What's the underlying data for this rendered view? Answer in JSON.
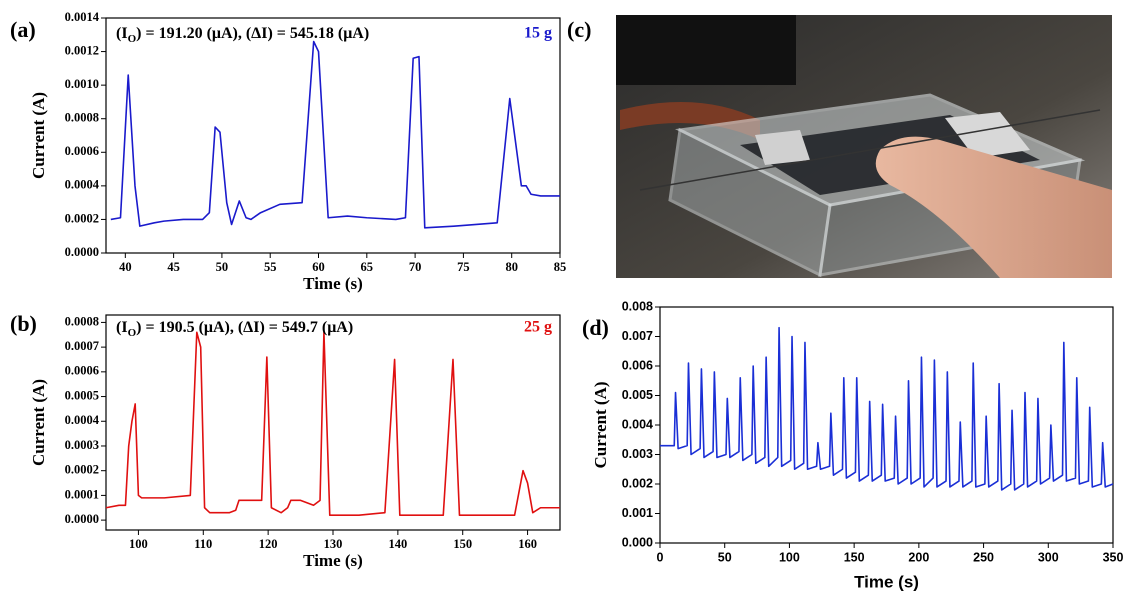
{
  "photo_panel": {
    "panel_label": "(c)"
  },
  "chart_data": [
    {
      "type": "line",
      "panel_label": "(a)",
      "color": "#1a1acc",
      "annotation_parts": [
        "(I",
        "O",
        ") = 191.20 (μA), (ΔI) = 545.18 (μA)"
      ],
      "load_label": "15 g",
      "load_color": "#1a1acc",
      "x_label": "Time (s)",
      "y_label": "Current (A)",
      "xlim": [
        38,
        85
      ],
      "xticks": [
        40,
        45,
        50,
        55,
        60,
        65,
        70,
        75,
        80,
        85
      ],
      "ylim": [
        0,
        0.0014
      ],
      "yticks": [
        {
          "value": 0,
          "label": "0.0000"
        },
        {
          "value": 0.0002,
          "label": "0.0002"
        },
        {
          "value": 0.0004,
          "label": "0.0004"
        },
        {
          "value": 0.0006,
          "label": "0.0006"
        },
        {
          "value": 0.0008,
          "label": "0.0008"
        },
        {
          "value": 0.001,
          "label": "0.0010"
        },
        {
          "value": 0.0012,
          "label": "0.0012"
        },
        {
          "value": 0.0014,
          "label": "0.0014"
        }
      ],
      "x": [
        38.5,
        39.5,
        40.3,
        41,
        41.5,
        43,
        44,
        46,
        48,
        48.7,
        49.3,
        49.8,
        50.5,
        51,
        51.8,
        52.5,
        53,
        54,
        56,
        58.3,
        59.5,
        60,
        61,
        63,
        65,
        68,
        69,
        69.8,
        70.4,
        71,
        74,
        78.5,
        79.8,
        81,
        81.5,
        82,
        83,
        85
      ],
      "values": [
        0.0002,
        0.00021,
        0.00106,
        0.0004,
        0.00016,
        0.00018,
        0.00019,
        0.0002,
        0.0002,
        0.00024,
        0.00075,
        0.00072,
        0.0003,
        0.00017,
        0.00031,
        0.00021,
        0.0002,
        0.00024,
        0.00029,
        0.0003,
        0.00126,
        0.0012,
        0.00021,
        0.00022,
        0.00021,
        0.0002,
        0.00021,
        0.00116,
        0.00117,
        0.00015,
        0.00016,
        0.00018,
        0.00092,
        0.0004,
        0.0004,
        0.00035,
        0.00034,
        0.00034
      ]
    },
    {
      "type": "line",
      "panel_label": "(b)",
      "color": "#e01010",
      "annotation_parts": [
        "(I",
        "O",
        ") = 190.5 (μA), (ΔI) = 549.7 (μA)"
      ],
      "load_label": "25 g",
      "load_color": "#e01010",
      "x_label": "Time (s)",
      "y_label": "Current (A)",
      "xlim": [
        95,
        165
      ],
      "xticks": [
        100,
        110,
        120,
        130,
        140,
        150,
        160
      ],
      "ylim": [
        -4e-05,
        0.00083
      ],
      "yticks": [
        {
          "value": 0,
          "label": "0.0000"
        },
        {
          "value": 0.0001,
          "label": "0.0001"
        },
        {
          "value": 0.0002,
          "label": "0.0002"
        },
        {
          "value": 0.0003,
          "label": "0.0003"
        },
        {
          "value": 0.0004,
          "label": "0.0004"
        },
        {
          "value": 0.0005,
          "label": "0.0005"
        },
        {
          "value": 0.0006,
          "label": "0.0006"
        },
        {
          "value": 0.0007,
          "label": "0.0007"
        },
        {
          "value": 0.0008,
          "label": "0.0008"
        }
      ],
      "x": [
        95,
        97,
        98,
        98.5,
        99,
        99.5,
        100,
        100.5,
        104,
        108,
        109,
        109.6,
        110.2,
        111,
        114,
        115,
        115.5,
        118,
        119,
        119.8,
        120.5,
        122,
        123,
        123.5,
        125,
        127,
        128,
        128.6,
        129.5,
        134,
        138,
        139.5,
        140.3,
        147,
        148.5,
        149.5,
        155,
        158,
        159.3,
        160,
        160.8,
        162,
        165
      ],
      "values": [
        5e-05,
        6e-05,
        6e-05,
        0.0003,
        0.0004,
        0.00047,
        0.0001,
        9e-05,
        9e-05,
        0.0001,
        0.00076,
        0.0007,
        5e-05,
        3e-05,
        3e-05,
        4e-05,
        8e-05,
        8e-05,
        8e-05,
        0.00066,
        5e-05,
        3e-05,
        5e-05,
        8e-05,
        8e-05,
        6e-05,
        8e-05,
        0.00076,
        2e-05,
        2e-05,
        3e-05,
        0.00065,
        2e-05,
        2e-05,
        0.00065,
        2e-05,
        2e-05,
        2e-05,
        0.0002,
        0.00015,
        3e-05,
        5e-05,
        5e-05
      ]
    },
    {
      "type": "line",
      "panel_label": "(d)",
      "color": "#1a2fd6",
      "x_label": "Time (s)",
      "y_label": "Current (A)",
      "xlim": [
        0,
        350
      ],
      "xticks": [
        0,
        50,
        100,
        150,
        200,
        250,
        300,
        350
      ],
      "ylim": [
        0,
        0.008
      ],
      "yticks": [
        {
          "value": 0,
          "label": "0.000"
        },
        {
          "value": 0.001,
          "label": "0.001"
        },
        {
          "value": 0.002,
          "label": "0.002"
        },
        {
          "value": 0.003,
          "label": "0.003"
        },
        {
          "value": 0.004,
          "label": "0.004"
        },
        {
          "value": 0.005,
          "label": "0.005"
        },
        {
          "value": 0.006,
          "label": "0.006"
        },
        {
          "value": 0.007,
          "label": "0.007"
        },
        {
          "value": 0.008,
          "label": "0.008"
        }
      ],
      "x": [
        0,
        11,
        12,
        14,
        21,
        22,
        24,
        31,
        32,
        34,
        41,
        42,
        44,
        51,
        52,
        54,
        61,
        62,
        64,
        71,
        72,
        74,
        81,
        82,
        84,
        91,
        92,
        94,
        101,
        102,
        104,
        111,
        112,
        114,
        121,
        122,
        124,
        131,
        132,
        134,
        141,
        142,
        144,
        151,
        152,
        154,
        161,
        162,
        164,
        171,
        172,
        174,
        181,
        182,
        184,
        191,
        192,
        194,
        201,
        202,
        204,
        211,
        212,
        214,
        221,
        222,
        224,
        231,
        232,
        234,
        241,
        242,
        244,
        251,
        252,
        254,
        261,
        262,
        264,
        271,
        272,
        274,
        281,
        282,
        284,
        291,
        292,
        294,
        301,
        302,
        304,
        311,
        312,
        314,
        321,
        322,
        324,
        331,
        332,
        334,
        341,
        342,
        344,
        350
      ],
      "values": [
        0.0033,
        0.0033,
        0.0051,
        0.0032,
        0.0033,
        0.0061,
        0.003,
        0.0032,
        0.0059,
        0.0029,
        0.0031,
        0.0058,
        0.0029,
        0.003,
        0.0049,
        0.0029,
        0.0031,
        0.0056,
        0.0028,
        0.003,
        0.006,
        0.0027,
        0.0029,
        0.0063,
        0.0026,
        0.0029,
        0.0073,
        0.0026,
        0.0028,
        0.007,
        0.0025,
        0.0027,
        0.0068,
        0.0025,
        0.0026,
        0.0034,
        0.0025,
        0.0026,
        0.0044,
        0.0023,
        0.0025,
        0.0056,
        0.0022,
        0.0024,
        0.0056,
        0.0021,
        0.0023,
        0.0048,
        0.0021,
        0.0023,
        0.0047,
        0.0021,
        0.0022,
        0.0043,
        0.002,
        0.0022,
        0.0055,
        0.002,
        0.0022,
        0.0063,
        0.0019,
        0.0022,
        0.0062,
        0.0019,
        0.0021,
        0.0058,
        0.0019,
        0.0021,
        0.0041,
        0.0019,
        0.0021,
        0.0061,
        0.0019,
        0.002,
        0.0043,
        0.0019,
        0.0021,
        0.0054,
        0.0018,
        0.002,
        0.0045,
        0.0018,
        0.002,
        0.0051,
        0.0019,
        0.0021,
        0.0049,
        0.002,
        0.0022,
        0.004,
        0.0021,
        0.0023,
        0.0068,
        0.0021,
        0.0022,
        0.0056,
        0.002,
        0.0021,
        0.0046,
        0.0019,
        0.002,
        0.0034,
        0.0019,
        0.002
      ]
    }
  ]
}
